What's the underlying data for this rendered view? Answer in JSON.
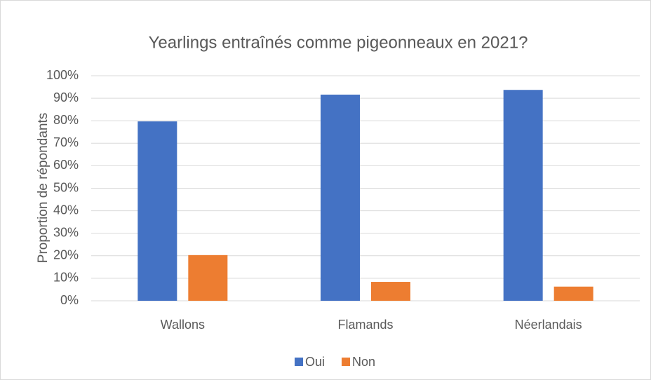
{
  "chart_data": {
    "type": "bar",
    "title": "Yearlings entraînés comme pigeonneaux en 2021?",
    "y_label": "Proportion de répondants",
    "categories": [
      "Wallons",
      "Flamands",
      "Néerlandais"
    ],
    "series": [
      {
        "name": "Oui",
        "color": "#4472c4",
        "values": [
          79.7,
          91.6,
          93.7
        ]
      },
      {
        "name": "Non",
        "color": "#ed7d31",
        "values": [
          20.3,
          8.4,
          6.3
        ]
      }
    ],
    "ylim": [
      0,
      100
    ],
    "yticks": [
      {
        "value": 0,
        "label": "0%"
      },
      {
        "value": 10,
        "label": "10%"
      },
      {
        "value": 20,
        "label": "20%"
      },
      {
        "value": 30,
        "label": "30%"
      },
      {
        "value": 40,
        "label": "40%"
      },
      {
        "value": 50,
        "label": "50%"
      },
      {
        "value": 60,
        "label": "60%"
      },
      {
        "value": 70,
        "label": "70%"
      },
      {
        "value": 80,
        "label": "80%"
      },
      {
        "value": 90,
        "label": "90%"
      },
      {
        "value": 100,
        "label": "100%"
      }
    ],
    "grid": true,
    "legend": "bottom"
  }
}
